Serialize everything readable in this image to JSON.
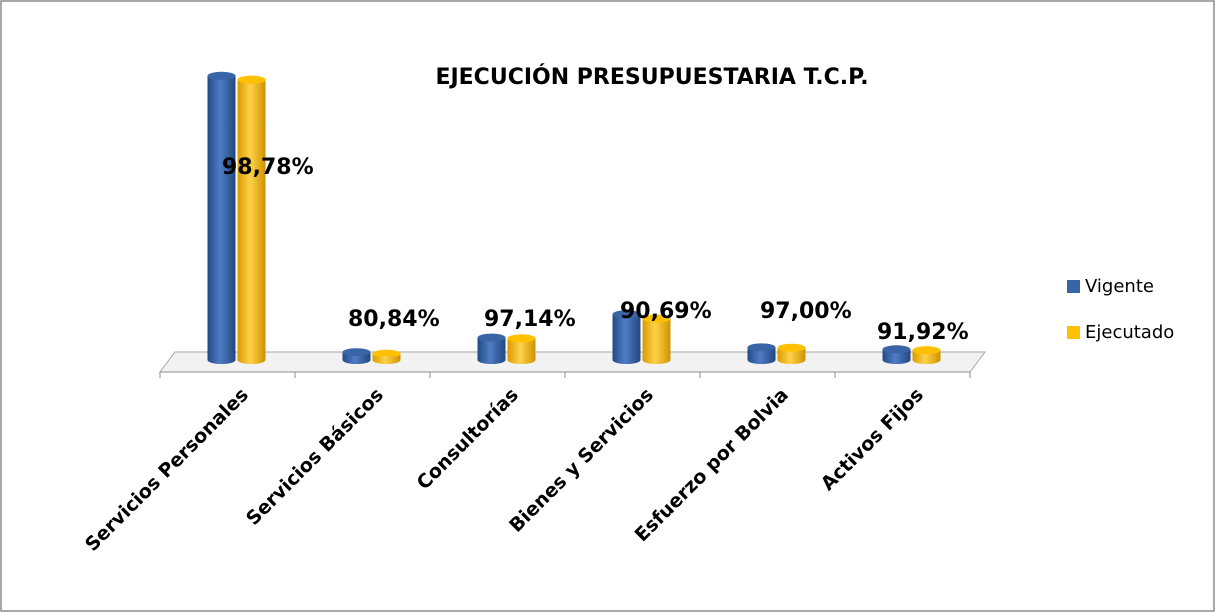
{
  "chart_data": {
    "type": "bar3d",
    "title": "EJECUCIÓN PRESUPUESTARIA T.C.P.",
    "categories": [
      "Servicios Personales",
      "Servicios Básicos",
      "Consultorías",
      "Bienes y Servicios",
      "Esfuerzo por Bolvia",
      "Activos Fijos"
    ],
    "series": [
      {
        "name": "Vigente",
        "color": "#3a64a8",
        "values": [
          292,
          8,
          23,
          47,
          13,
          11
        ]
      },
      {
        "name": "Ejecutado",
        "color": "#ffc000",
        "values": [
          288,
          6.5,
          22.3,
          42.6,
          12.6,
          10.1
        ]
      }
    ],
    "annotations": [
      "98,78%",
      "80,84%",
      "97,14%",
      "90,69%",
      "97,00%",
      "91,92%"
    ],
    "ylim": [
      0,
      300
    ],
    "legend": "right"
  }
}
